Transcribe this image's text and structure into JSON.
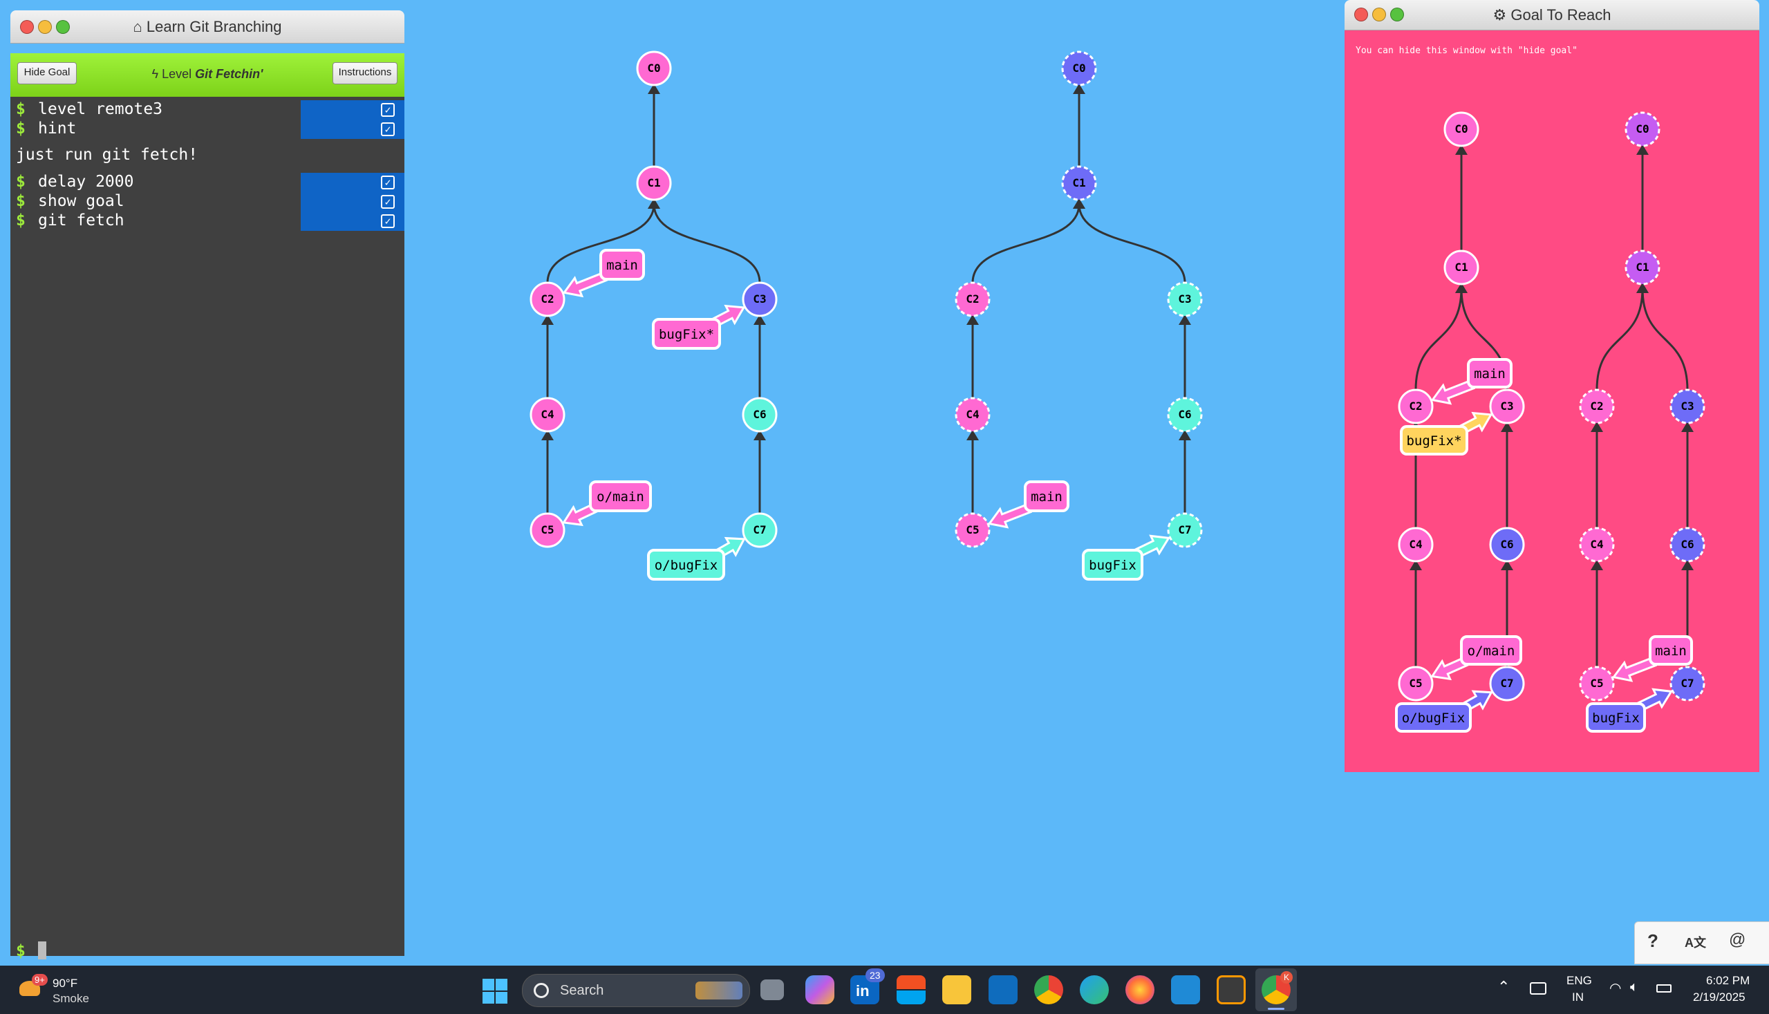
{
  "app": {
    "title": "Learn Git Branching",
    "hide_goal_label": "Hide Goal",
    "level_prefix": "Level",
    "level_name": "Git Fetchin'",
    "instructions_label": "Instructions",
    "prompt_symbol": "$"
  },
  "terminal": {
    "commands_a": [
      {
        "text": "level remote3",
        "done": true
      },
      {
        "text": "hint",
        "done": true
      }
    ],
    "hint_output": "just run git fetch!",
    "commands_b": [
      {
        "text": "delay 2000",
        "done": true
      },
      {
        "text": "show goal",
        "done": true
      },
      {
        "text": "git fetch",
        "done": true
      }
    ]
  },
  "goal_window": {
    "title": "Goal To Reach",
    "hint": "You can hide this window with \"hide goal\""
  },
  "colors": {
    "background": "#5cb8f9",
    "goal_background": "#ff4b84",
    "pink_commit": "#ff69d2",
    "purple_commit": "#6e6cf7",
    "teal_commit": "#5ef4dc",
    "violet_commit": "#c55cf2",
    "yellow_branch": "#ffd45e"
  },
  "graphs": {
    "local": {
      "commits": [
        "C0",
        "C1",
        "C2",
        "C3",
        "C4",
        "C6",
        "C5",
        "C7"
      ],
      "branches": [
        "main",
        "bugFix*",
        "o/main",
        "o/bugFix"
      ]
    },
    "remote": {
      "commits": [
        "C0",
        "C1",
        "C2",
        "C3",
        "C4",
        "C6",
        "C5",
        "C7"
      ],
      "branches": [
        "main",
        "bugFix"
      ]
    },
    "goal_local": {
      "commits": [
        "C0",
        "C1",
        "C2",
        "C3",
        "C4",
        "C6",
        "C5",
        "C7"
      ],
      "branches": [
        "main",
        "bugFix*",
        "o/main",
        "o/bugFix"
      ]
    },
    "goal_remote": {
      "commits": [
        "C0",
        "C1",
        "C2",
        "C3",
        "C4",
        "C6",
        "C5",
        "C7"
      ],
      "branches": [
        "main",
        "bugFix"
      ]
    }
  },
  "taskbar": {
    "weather_badge": "9+",
    "temperature": "90°F",
    "condition": "Smoke",
    "search_placeholder": "Search",
    "linkedin_badge": "23",
    "chrome_badge": "K",
    "language_top": "ENG",
    "language_bottom": "IN",
    "time": "6:02 PM",
    "date": "2/19/2025",
    "icons": [
      "windows-start-icon",
      "task-view-icon",
      "copilot-icon",
      "linkedin-icon",
      "store-icon",
      "file-explorer-icon",
      "outlook-icon",
      "chrome-icon",
      "edge-icon",
      "firefox-icon",
      "vscode-icon",
      "sublime-text-icon",
      "chrome-profile-icon"
    ]
  },
  "corner_widget": {
    "help_label": "?",
    "lang_label": "A文"
  }
}
